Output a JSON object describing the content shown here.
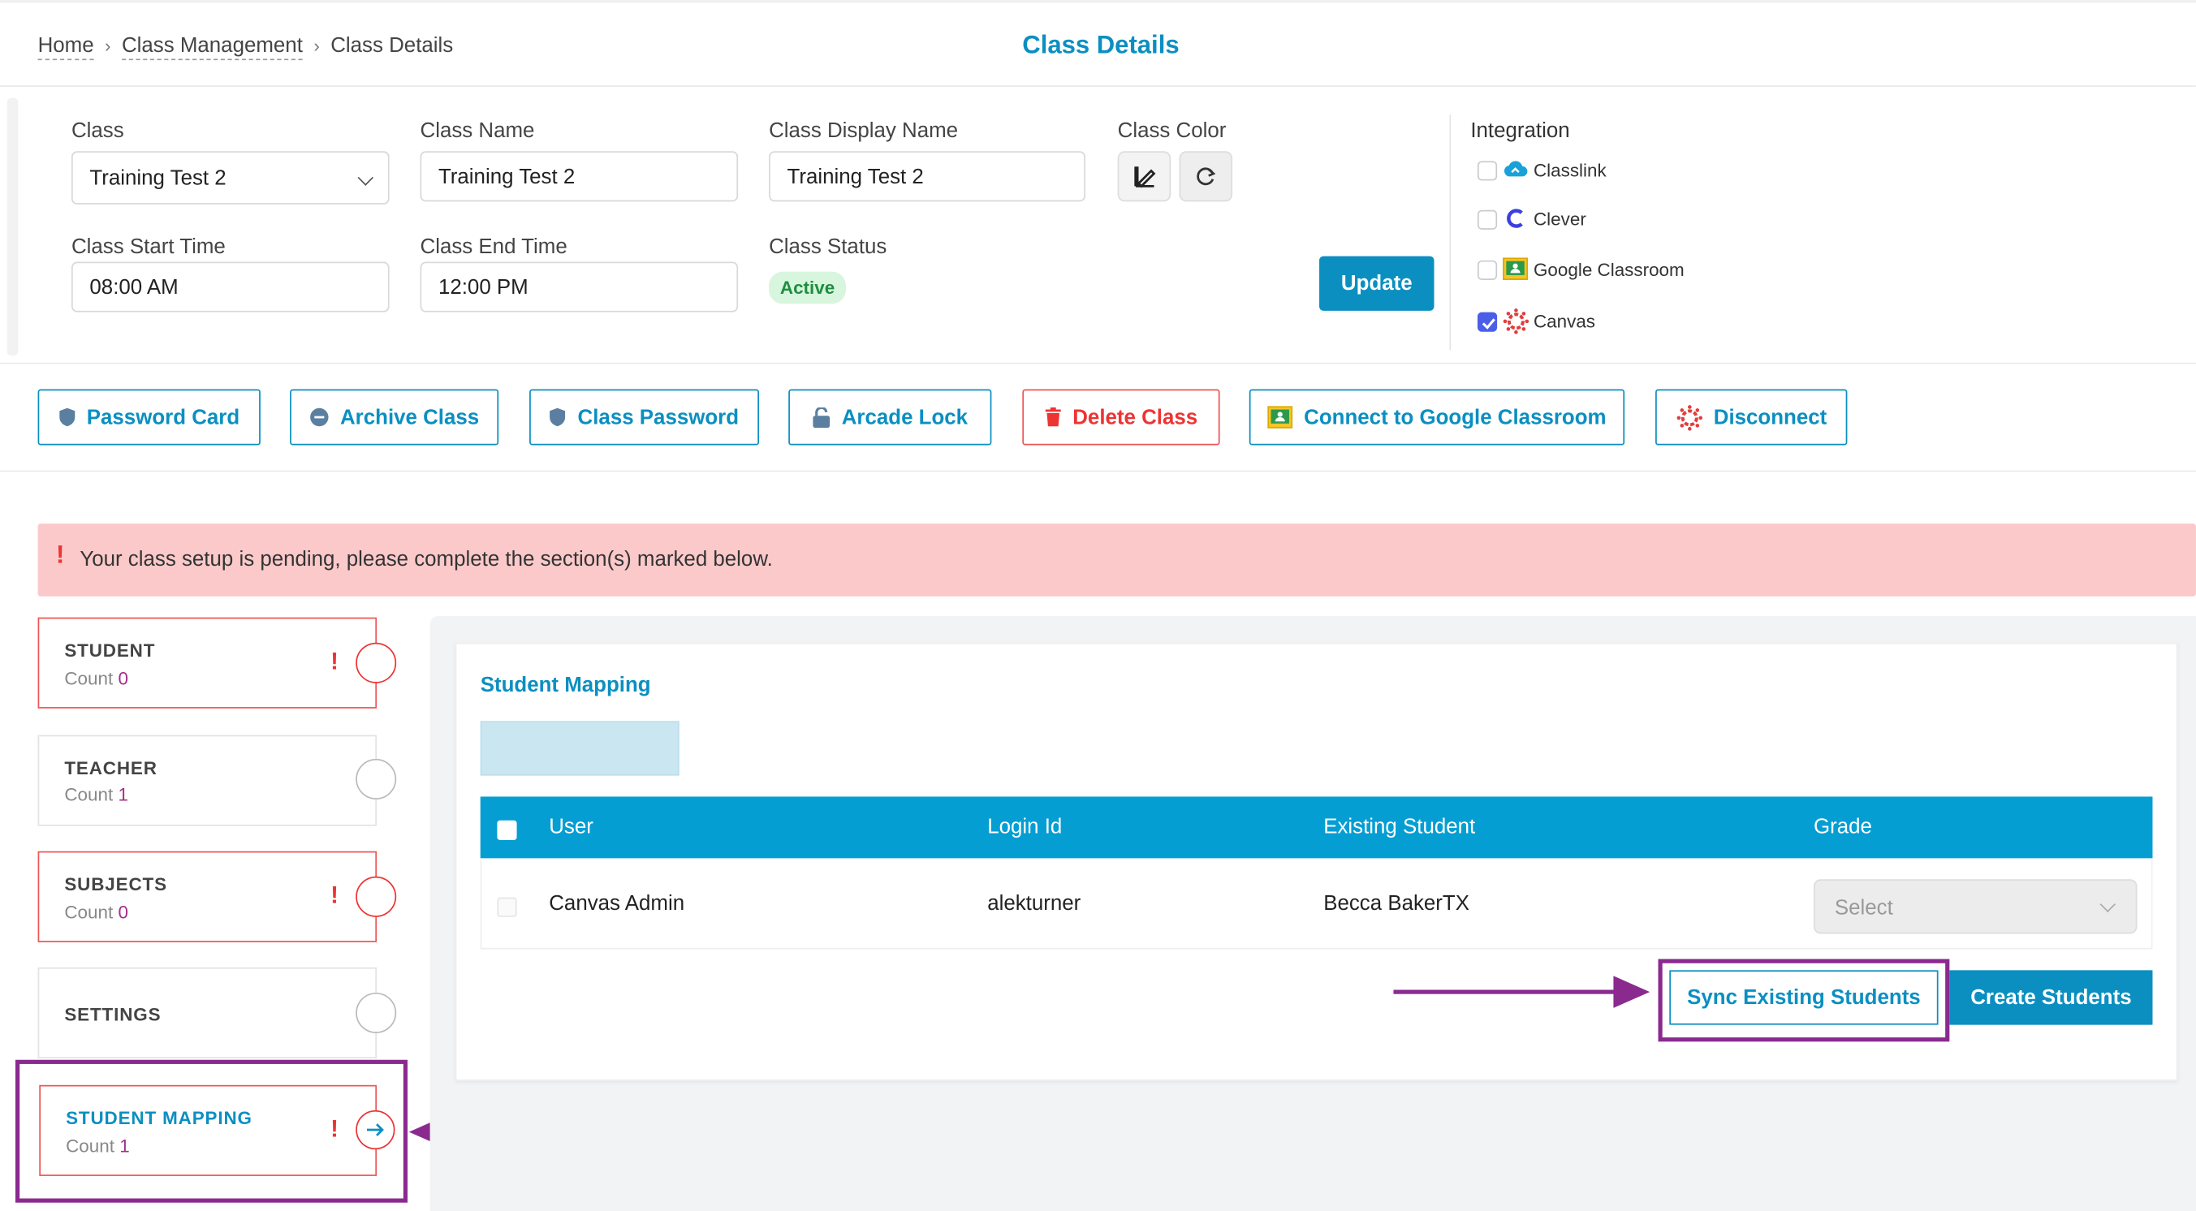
{
  "breadcrumb": {
    "home": "Home",
    "class_management": "Class Management",
    "current": "Class Details"
  },
  "page_title": "Class Details",
  "form": {
    "class_label": "Class",
    "class_value": "Training Test 2",
    "class_name_label": "Class Name",
    "class_name_value": "Training Test 2",
    "display_name_label": "Class Display Name",
    "display_name_value": "Training Test 2",
    "color_label": "Class Color",
    "start_label": "Class Start Time",
    "start_value": "08:00 AM",
    "end_label": "Class End Time",
    "end_value": "12:00 PM",
    "status_label": "Class Status",
    "status_value": "Active",
    "update_label": "Update"
  },
  "integration": {
    "title": "Integration",
    "items": [
      {
        "label": "Classlink",
        "checked": false,
        "icon": "classlink-icon"
      },
      {
        "label": "Clever",
        "checked": false,
        "icon": "clever-icon"
      },
      {
        "label": "Google Classroom",
        "checked": false,
        "icon": "google-classroom-icon"
      },
      {
        "label": "Canvas",
        "checked": true,
        "icon": "canvas-icon"
      }
    ]
  },
  "actions": {
    "password_card": "Password Card",
    "archive_class": "Archive Class",
    "class_password": "Class Password",
    "arcade_lock": "Arcade Lock",
    "delete_class": "Delete Class",
    "connect_google": "Connect to Google Classroom",
    "disconnect": "Disconnect"
  },
  "alert": {
    "icon": "!",
    "text": "Your class setup is pending, please complete the section(s) marked below."
  },
  "steps": [
    {
      "title": "STUDENT",
      "count_label": "Count",
      "count": "0",
      "warning": "!"
    },
    {
      "title": "TEACHER",
      "count_label": "Count",
      "count": "1",
      "warning": ""
    },
    {
      "title": "SUBJECTS",
      "count_label": "Count",
      "count": "0",
      "warning": "!"
    },
    {
      "title": "SETTINGS",
      "count_label": "",
      "count": "",
      "warning": ""
    },
    {
      "title": "STUDENT MAPPING",
      "count_label": "Count",
      "count": "1",
      "warning": "!"
    }
  ],
  "mapping": {
    "title": "Student Mapping",
    "columns": {
      "user": "User",
      "login_id": "Login Id",
      "existing_student": "Existing Student",
      "grade": "Grade"
    },
    "rows": [
      {
        "user": "Canvas Admin",
        "login_id": "alekturner",
        "existing_student": "Becca BakerTX",
        "grade_placeholder": "Select"
      }
    ],
    "sync_label": "Sync Existing Students",
    "create_label": "Create Students"
  },
  "colors": {
    "accent": "#0b8fc1",
    "header": "#049ed3",
    "alert_bg": "#fbc9ca",
    "highlight": "#8a2a8f",
    "danger": "#e33333"
  }
}
